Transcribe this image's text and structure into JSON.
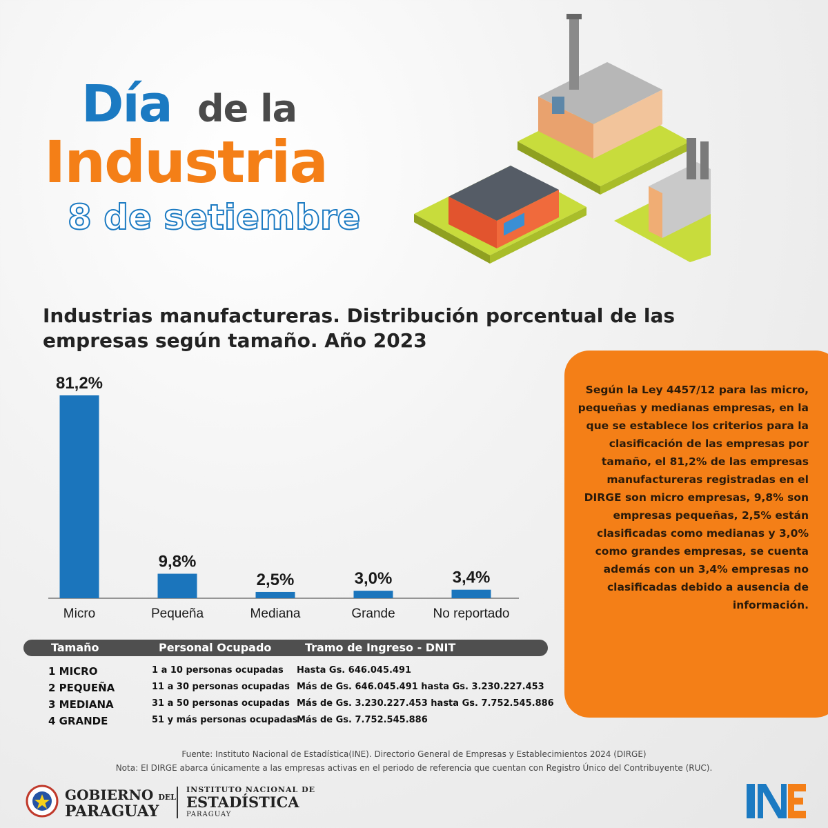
{
  "header": {
    "line1_a": "Día",
    "line1_b": "de la",
    "line2": "Industria",
    "date": "8 de setiembre"
  },
  "chart_title": "Industrias manufactureras. Distribución porcentual de las empresas según tamaño. Año 2023",
  "chart_data": {
    "type": "bar",
    "title": "Industrias manufactureras. Distribución porcentual de las empresas según tamaño. Año 2023",
    "categories": [
      "Micro",
      "Pequeña",
      "Mediana",
      "Grande",
      "No reportado"
    ],
    "values": [
      81.2,
      9.8,
      2.5,
      3.0,
      3.4
    ],
    "labels": [
      "81,2%",
      "9,8%",
      "2,5%",
      "3,0%",
      "3,4%"
    ],
    "ylim": [
      0,
      81.2
    ],
    "color": "#1b75bc",
    "grid": false
  },
  "table": {
    "headers": [
      "Tamaño",
      "Personal Ocupado",
      "Tramo de Ingreso - DNIT"
    ],
    "rows": [
      {
        "size": "1 MICRO",
        "staff": "1 a 10 personas ocupadas",
        "income": "Hasta  Gs. 646.045.491"
      },
      {
        "size": "2 PEQUEÑA",
        "staff": "11 a 30 personas ocupadas",
        "income": "Más de Gs. 646.045.491 hasta Gs. 3.230.227.453"
      },
      {
        "size": "3 MEDIANA",
        "staff": "31 a 50 personas ocupadas",
        "income": "Más de Gs. 3.230.227.453 hasta Gs. 7.752.545.886"
      },
      {
        "size": "4 GRANDE",
        "staff": "51 y más personas ocupadas",
        "income": "Más de Gs. 7.752.545.886"
      }
    ]
  },
  "note": "Según la Ley 4457/12 para las micro, pequeñas y medianas empresas, en la que se establece los criterios para la clasificación de las empresas por tamaño, el 81,2% de las empresas manufactureras registradas en el DIRGE son micro empresas, 9,8% son empresas pequeñas, 2,5% están clasificadas como medianas y 3,0% como grandes empresas, se cuenta además con un 3,4% empresas no clasificadas debido a ausencia de información.",
  "footer": {
    "source": "Fuente: Instituto Nacional de Estadística(INE). Directorio General de Empresas y Establecimientos 2024 (DIRGE)",
    "note": "Nota: El DIRGE abarca únicamente a las empresas activas en el periodo de referencia que cuentan con Registro Único del Contribuyente (RUC)."
  },
  "logos": {
    "gov_line1": "GOBIERNO",
    "gov_del": "DEL",
    "gov_line2": "PARAGUAY",
    "ine_line1": "INSTITUTO NACIONAL DE",
    "ine_line2": "ESTADÍSTICA",
    "ine_line3": "PARAGUAY",
    "ine_mark": "INE"
  },
  "colors": {
    "blue": "#1b7ac2",
    "orange": "#f47f17",
    "dark": "#4f4f4f"
  }
}
